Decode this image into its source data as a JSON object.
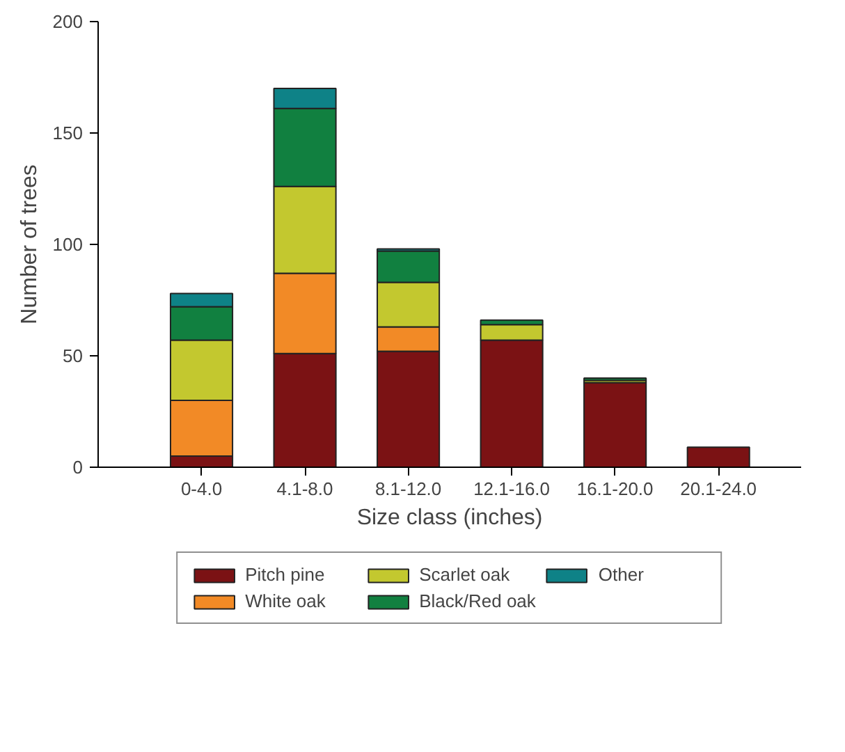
{
  "chart_data": {
    "type": "bar",
    "stacked": true,
    "xlabel": "Size class (inches)",
    "ylabel": "Number of trees",
    "categories": [
      "0-4.0",
      "4.1-8.0",
      "8.1-12.0",
      "12.1-16.0",
      "16.1-20.0",
      "20.1-24.0"
    ],
    "series": [
      {
        "name": "Pitch pine",
        "color": "#7b1214",
        "values": [
          5,
          51,
          52,
          57,
          38,
          9
        ]
      },
      {
        "name": "White oak",
        "color": "#f28a26",
        "values": [
          25,
          36,
          11,
          0,
          0,
          0
        ]
      },
      {
        "name": "Scarlet oak",
        "color": "#c3c82f",
        "values": [
          27,
          39,
          20,
          7,
          1,
          0
        ]
      },
      {
        "name": "Black/Red oak",
        "color": "#118040",
        "values": [
          15,
          35,
          14,
          2,
          1,
          0
        ]
      },
      {
        "name": "Other",
        "color": "#0e8287",
        "values": [
          6,
          9,
          1,
          0,
          0,
          0
        ]
      }
    ],
    "ylim": [
      0,
      200
    ],
    "yticks": [
      0,
      50,
      100,
      150,
      200
    ],
    "grid": false,
    "legend": "bottom"
  }
}
